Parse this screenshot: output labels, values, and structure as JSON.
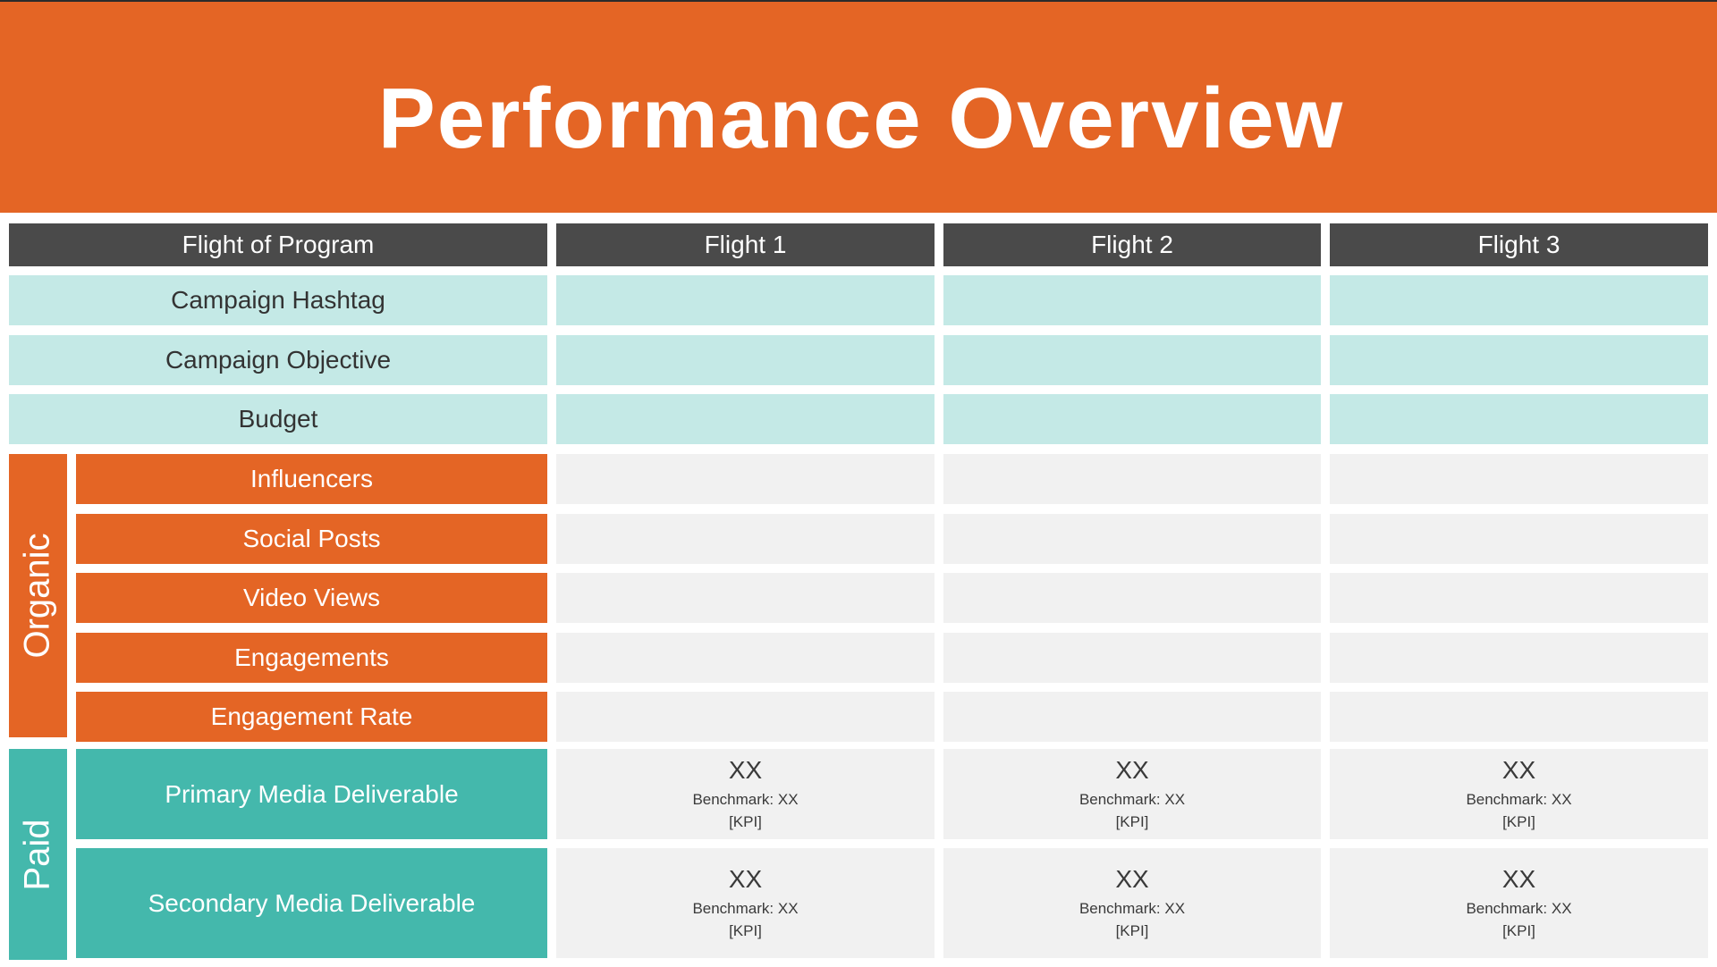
{
  "title": "Performance Overview",
  "header": {
    "row_label": "Flight of Program",
    "flights": [
      "Flight 1",
      "Flight 2",
      "Flight 3"
    ]
  },
  "campaign_rows": [
    "Campaign Hashtag",
    "Campaign Objective",
    "Budget"
  ],
  "organic": {
    "label": "Organic",
    "rows": [
      "Influencers",
      "Social Posts",
      "Video Views",
      "Engagements",
      "Engagement Rate"
    ]
  },
  "paid": {
    "label": "Paid",
    "rows": [
      {
        "label": "Primary Media Deliverable",
        "cells": [
          {
            "value": "XX",
            "benchmark": "Benchmark: XX",
            "kpi": "[KPI]"
          },
          {
            "value": "XX",
            "benchmark": "Benchmark: XX",
            "kpi": "[KPI]"
          },
          {
            "value": "XX",
            "benchmark": "Benchmark: XX",
            "kpi": "[KPI]"
          }
        ]
      },
      {
        "label": "Secondary Media Deliverable",
        "cells": [
          {
            "value": "XX",
            "benchmark": "Benchmark: XX",
            "kpi": "[KPI]"
          },
          {
            "value": "XX",
            "benchmark": "Benchmark: XX",
            "kpi": "[KPI]"
          },
          {
            "value": "XX",
            "benchmark": "Benchmark: XX",
            "kpi": "[KPI]"
          }
        ]
      }
    ]
  },
  "colors": {
    "orange": "#e46525",
    "header_gray": "#4a4a4a",
    "mint": "#c4e9e6",
    "teal": "#44b8ac",
    "empty_gray": "#f1f1f1"
  }
}
